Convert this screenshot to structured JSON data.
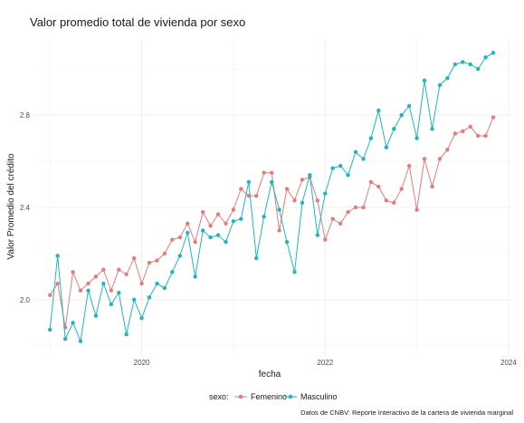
{
  "chart_data": {
    "type": "line",
    "title": "Valor promedio total de vivienda por sexo",
    "xlabel": "fecha",
    "ylabel": "Valor Promedio del crédito",
    "caption": "Datos de CNBV: Reporte Interactivo de la cartera de vivienda marginal",
    "x_ticks": [
      {
        "value": 2020,
        "label": "2020"
      },
      {
        "value": 2022,
        "label": "2022"
      },
      {
        "value": 2024,
        "label": "2024"
      }
    ],
    "y_ticks": [
      {
        "value": 2.0,
        "label": "2.0"
      },
      {
        "value": 2.4,
        "label": "2.4"
      },
      {
        "value": 2.8,
        "label": "2.8"
      }
    ],
    "xlim": [
      2018.82,
      2024.05
    ],
    "ylim": [
      1.76,
      3.13
    ],
    "grid": true,
    "legend": {
      "title": "sexo:",
      "position": "bottom"
    },
    "x": [
      2019.0,
      2019.083,
      2019.167,
      2019.25,
      2019.333,
      2019.417,
      2019.5,
      2019.583,
      2019.667,
      2019.75,
      2019.833,
      2019.917,
      2020.0,
      2020.083,
      2020.167,
      2020.25,
      2020.333,
      2020.417,
      2020.5,
      2020.583,
      2020.667,
      2020.75,
      2020.833,
      2020.917,
      2021.0,
      2021.083,
      2021.167,
      2021.25,
      2021.333,
      2021.417,
      2021.5,
      2021.583,
      2021.667,
      2021.75,
      2021.833,
      2021.917,
      2022.0,
      2022.083,
      2022.167,
      2022.25,
      2022.333,
      2022.417,
      2022.5,
      2022.583,
      2022.667,
      2022.75,
      2022.833,
      2022.917,
      2023.0,
      2023.083,
      2023.167,
      2023.25,
      2023.333,
      2023.417,
      2023.5,
      2023.583,
      2023.667,
      2023.75,
      2023.833
    ],
    "series": [
      {
        "name": "Femenino",
        "color": "#E27D7B",
        "values": [
          2.02,
          2.07,
          1.88,
          2.12,
          2.04,
          2.07,
          2.1,
          2.13,
          2.04,
          2.13,
          2.11,
          2.18,
          2.07,
          2.16,
          2.17,
          2.2,
          2.26,
          2.27,
          2.33,
          2.25,
          2.38,
          2.32,
          2.37,
          2.33,
          2.39,
          2.48,
          2.45,
          2.45,
          2.55,
          2.55,
          2.3,
          2.48,
          2.43,
          2.52,
          2.53,
          2.43,
          2.26,
          2.35,
          2.33,
          2.38,
          2.4,
          2.4,
          2.51,
          2.49,
          2.43,
          2.42,
          2.48,
          2.58,
          2.39,
          2.61,
          2.49,
          2.61,
          2.65,
          2.72,
          2.73,
          2.75,
          2.71,
          2.71,
          2.79
        ]
      },
      {
        "name": "Masculino",
        "color": "#22B5BD",
        "values": [
          1.87,
          2.19,
          1.83,
          1.9,
          1.82,
          2.04,
          1.93,
          2.07,
          1.98,
          2.03,
          1.85,
          2.0,
          1.92,
          2.01,
          2.07,
          2.05,
          2.12,
          2.19,
          2.29,
          2.1,
          2.3,
          2.27,
          2.28,
          2.25,
          2.34,
          2.35,
          2.51,
          2.18,
          2.36,
          2.51,
          2.39,
          2.25,
          2.12,
          2.42,
          2.54,
          2.28,
          2.46,
          2.57,
          2.58,
          2.54,
          2.64,
          2.61,
          2.7,
          2.82,
          2.66,
          2.74,
          2.8,
          2.84,
          2.7,
          2.95,
          2.74,
          2.93,
          2.96,
          3.02,
          3.03,
          3.02,
          3.0,
          3.05,
          3.07
        ]
      }
    ]
  }
}
